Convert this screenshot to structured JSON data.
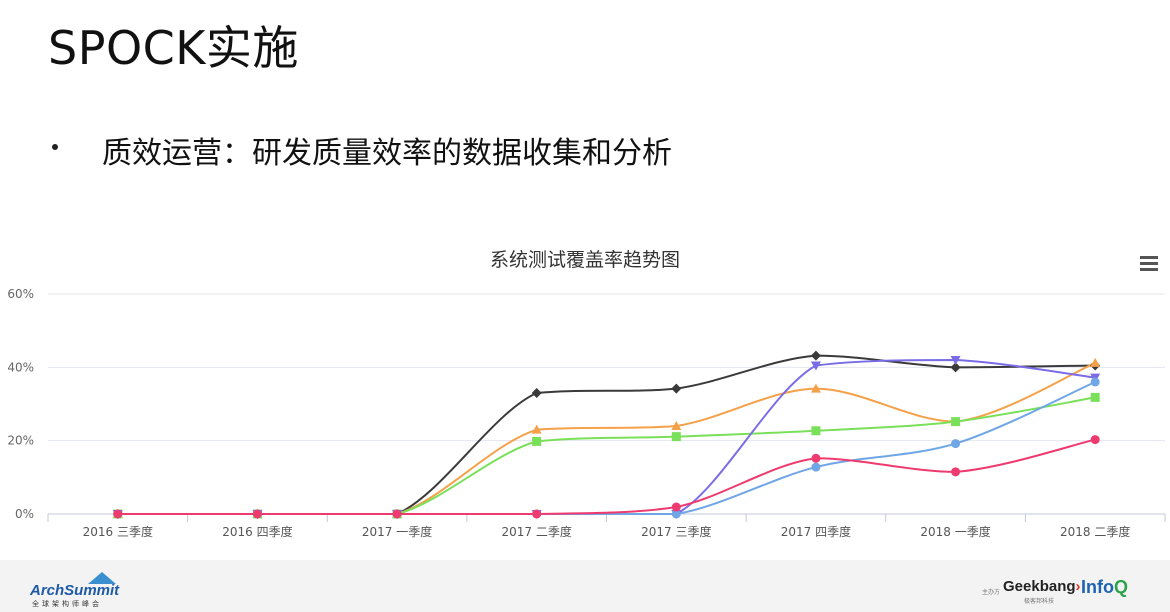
{
  "slide": {
    "title": "SPOCK实施",
    "bullet": "质效运营：研发质量效率的数据收集和分析"
  },
  "chart_data": {
    "type": "line",
    "title": "系统测试覆盖率趋势图",
    "categories": [
      "2016 三季度",
      "2016 四季度",
      "2017 一季度",
      "2017 二季度",
      "2017 三季度",
      "2017 四季度",
      "2018 一季度",
      "2018 二季度"
    ],
    "ylim": [
      0,
      60
    ],
    "yticks": [
      0,
      20,
      40,
      60
    ],
    "ytick_labels": [
      "0%",
      "20%",
      "40%",
      "60%"
    ],
    "grid": true,
    "legend": "none",
    "series": [
      {
        "color": "#3a3a3a",
        "marker": "diamond",
        "values": [
          0,
          0,
          0,
          33,
          34.2,
          43.2,
          40,
          40.5
        ]
      },
      {
        "color": "#f5a14a",
        "marker": "triangle",
        "values": [
          0,
          0,
          0,
          23,
          24,
          34.2,
          25.2,
          41.2
        ]
      },
      {
        "color": "#7ae05a",
        "marker": "square",
        "values": [
          0,
          0,
          0,
          19.8,
          21.1,
          22.7,
          25.2,
          31.8
        ]
      },
      {
        "color": "#7a6ce6",
        "marker": "triangle-down",
        "values": [
          0,
          0,
          0,
          0,
          0,
          40.5,
          42,
          37.2
        ]
      },
      {
        "color": "#6fa6e6",
        "marker": "circle",
        "values": [
          0,
          0,
          0,
          0,
          0,
          12.8,
          19.2,
          36
        ]
      },
      {
        "color": "#ee3a6e",
        "marker": "circle",
        "values": [
          0,
          0,
          0,
          0,
          1.9,
          15.2,
          11.5,
          20.3
        ]
      }
    ]
  },
  "footer": {
    "arch_name": "ArchSummit",
    "arch_sub": "全球架构师峰会",
    "host_label": "主办方",
    "geek_name_a": "Geek",
    "geek_name_b": "bang",
    "geek_mark": "›",
    "geek_sub": "极客邦科技",
    "infoq_a": "Info",
    "infoq_b": "Q"
  }
}
